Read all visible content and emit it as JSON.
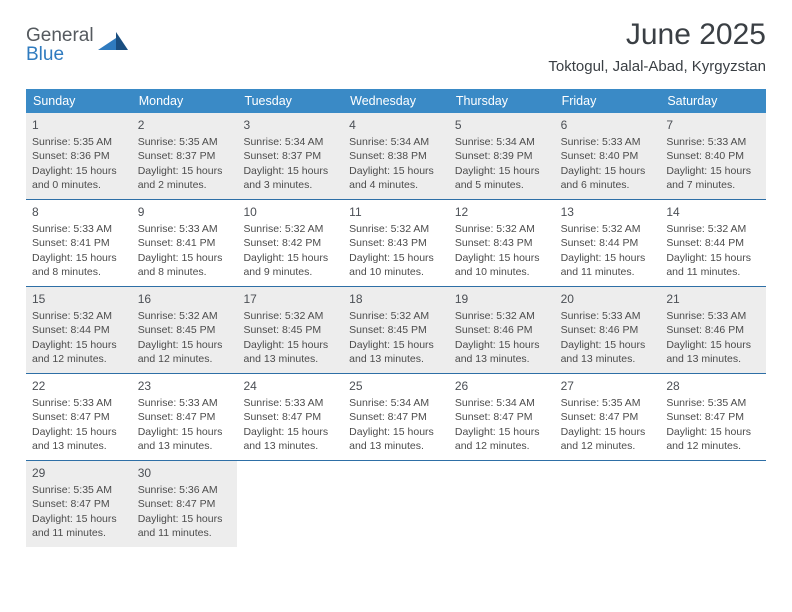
{
  "logo": {
    "top": "General",
    "bottom": "Blue"
  },
  "title": "June 2025",
  "location": "Toktogul, Jalal-Abad, Kyrgyzstan",
  "colors": {
    "header_bg": "#3a8ac6",
    "header_text": "#ffffff",
    "week_border": "#2e6fa6",
    "shaded_bg": "#ededed",
    "text": "#4c4c4c",
    "logo_gray": "#555a5f",
    "logo_blue": "#2f7bbf"
  },
  "weekdays": [
    "Sunday",
    "Monday",
    "Tuesday",
    "Wednesday",
    "Thursday",
    "Friday",
    "Saturday"
  ],
  "weeks": [
    {
      "shaded": true,
      "days": [
        {
          "n": "1",
          "sunrise": "5:35 AM",
          "sunset": "8:36 PM",
          "daylight": "15 hours and 0 minutes."
        },
        {
          "n": "2",
          "sunrise": "5:35 AM",
          "sunset": "8:37 PM",
          "daylight": "15 hours and 2 minutes."
        },
        {
          "n": "3",
          "sunrise": "5:34 AM",
          "sunset": "8:37 PM",
          "daylight": "15 hours and 3 minutes."
        },
        {
          "n": "4",
          "sunrise": "5:34 AM",
          "sunset": "8:38 PM",
          "daylight": "15 hours and 4 minutes."
        },
        {
          "n": "5",
          "sunrise": "5:34 AM",
          "sunset": "8:39 PM",
          "daylight": "15 hours and 5 minutes."
        },
        {
          "n": "6",
          "sunrise": "5:33 AM",
          "sunset": "8:40 PM",
          "daylight": "15 hours and 6 minutes."
        },
        {
          "n": "7",
          "sunrise": "5:33 AM",
          "sunset": "8:40 PM",
          "daylight": "15 hours and 7 minutes."
        }
      ]
    },
    {
      "shaded": false,
      "days": [
        {
          "n": "8",
          "sunrise": "5:33 AM",
          "sunset": "8:41 PM",
          "daylight": "15 hours and 8 minutes."
        },
        {
          "n": "9",
          "sunrise": "5:33 AM",
          "sunset": "8:41 PM",
          "daylight": "15 hours and 8 minutes."
        },
        {
          "n": "10",
          "sunrise": "5:32 AM",
          "sunset": "8:42 PM",
          "daylight": "15 hours and 9 minutes."
        },
        {
          "n": "11",
          "sunrise": "5:32 AM",
          "sunset": "8:43 PM",
          "daylight": "15 hours and 10 minutes."
        },
        {
          "n": "12",
          "sunrise": "5:32 AM",
          "sunset": "8:43 PM",
          "daylight": "15 hours and 10 minutes."
        },
        {
          "n": "13",
          "sunrise": "5:32 AM",
          "sunset": "8:44 PM",
          "daylight": "15 hours and 11 minutes."
        },
        {
          "n": "14",
          "sunrise": "5:32 AM",
          "sunset": "8:44 PM",
          "daylight": "15 hours and 11 minutes."
        }
      ]
    },
    {
      "shaded": true,
      "days": [
        {
          "n": "15",
          "sunrise": "5:32 AM",
          "sunset": "8:44 PM",
          "daylight": "15 hours and 12 minutes."
        },
        {
          "n": "16",
          "sunrise": "5:32 AM",
          "sunset": "8:45 PM",
          "daylight": "15 hours and 12 minutes."
        },
        {
          "n": "17",
          "sunrise": "5:32 AM",
          "sunset": "8:45 PM",
          "daylight": "15 hours and 13 minutes."
        },
        {
          "n": "18",
          "sunrise": "5:32 AM",
          "sunset": "8:45 PM",
          "daylight": "15 hours and 13 minutes."
        },
        {
          "n": "19",
          "sunrise": "5:32 AM",
          "sunset": "8:46 PM",
          "daylight": "15 hours and 13 minutes."
        },
        {
          "n": "20",
          "sunrise": "5:33 AM",
          "sunset": "8:46 PM",
          "daylight": "15 hours and 13 minutes."
        },
        {
          "n": "21",
          "sunrise": "5:33 AM",
          "sunset": "8:46 PM",
          "daylight": "15 hours and 13 minutes."
        }
      ]
    },
    {
      "shaded": false,
      "days": [
        {
          "n": "22",
          "sunrise": "5:33 AM",
          "sunset": "8:47 PM",
          "daylight": "15 hours and 13 minutes."
        },
        {
          "n": "23",
          "sunrise": "5:33 AM",
          "sunset": "8:47 PM",
          "daylight": "15 hours and 13 minutes."
        },
        {
          "n": "24",
          "sunrise": "5:33 AM",
          "sunset": "8:47 PM",
          "daylight": "15 hours and 13 minutes."
        },
        {
          "n": "25",
          "sunrise": "5:34 AM",
          "sunset": "8:47 PM",
          "daylight": "15 hours and 13 minutes."
        },
        {
          "n": "26",
          "sunrise": "5:34 AM",
          "sunset": "8:47 PM",
          "daylight": "15 hours and 12 minutes."
        },
        {
          "n": "27",
          "sunrise": "5:35 AM",
          "sunset": "8:47 PM",
          "daylight": "15 hours and 12 minutes."
        },
        {
          "n": "28",
          "sunrise": "5:35 AM",
          "sunset": "8:47 PM",
          "daylight": "15 hours and 12 minutes."
        }
      ]
    },
    {
      "shaded": true,
      "days": [
        {
          "n": "29",
          "sunrise": "5:35 AM",
          "sunset": "8:47 PM",
          "daylight": "15 hours and 11 minutes."
        },
        {
          "n": "30",
          "sunrise": "5:36 AM",
          "sunset": "8:47 PM",
          "daylight": "15 hours and 11 minutes."
        },
        null,
        null,
        null,
        null,
        null
      ]
    }
  ],
  "labels": {
    "sunrise": "Sunrise:",
    "sunset": "Sunset:",
    "daylight": "Daylight:"
  }
}
